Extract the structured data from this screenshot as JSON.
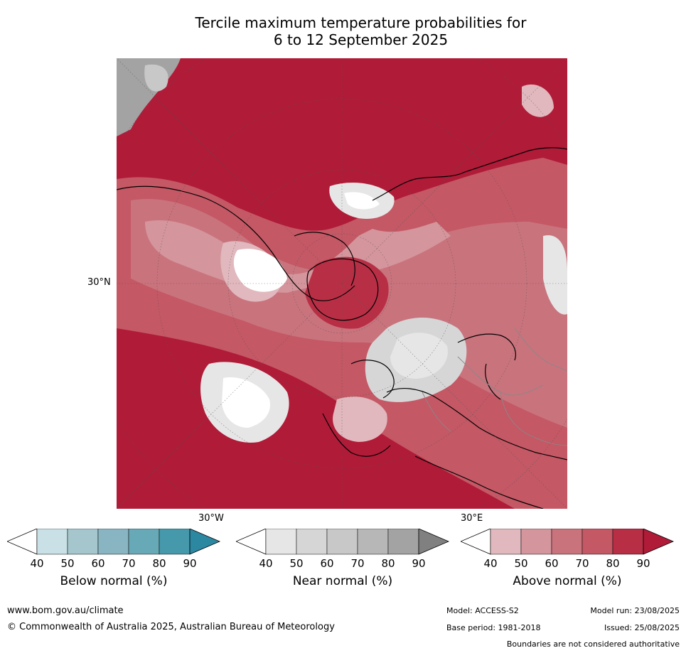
{
  "title_line1": "Tercile maximum temperature probabilities for",
  "title_line2": "6 to 12 September 2025",
  "map": {
    "projection": "north-polar-stereographic",
    "lat_label": "30°N",
    "lon_labels": [
      "30°W",
      "30°E"
    ],
    "dominant_category": "Above normal",
    "colors": {
      "above": [
        "#e0b8bd",
        "#d4959c",
        "#c9737d",
        "#c45865",
        "#b82f45",
        "#b01b38"
      ],
      "below": [
        "#c8e0e6",
        "#a4c6cc",
        "#88b5c1",
        "#67a9b6",
        "#4699ab",
        "#2c87a1"
      ],
      "near": [
        "#e6e6e6",
        "#d6d6d6",
        "#c8c8c8",
        "#b7b7b7",
        "#a3a3a3",
        "#808080"
      ]
    }
  },
  "colorbars": [
    {
      "label": "Below normal (%)",
      "ticks": [
        "40",
        "50",
        "60",
        "70",
        "80",
        "90"
      ],
      "colors": [
        "#ffffff",
        "#c8e0e6",
        "#a4c6cc",
        "#88b5c1",
        "#67a9b6",
        "#4699ab",
        "#2c87a1"
      ]
    },
    {
      "label": "Near normal (%)",
      "ticks": [
        "40",
        "50",
        "60",
        "70",
        "80",
        "90"
      ],
      "colors": [
        "#ffffff",
        "#e6e6e6",
        "#d6d6d6",
        "#c8c8c8",
        "#b7b7b7",
        "#a3a3a3",
        "#808080"
      ]
    },
    {
      "label": "Above normal (%)",
      "ticks": [
        "40",
        "50",
        "60",
        "70",
        "80",
        "90"
      ],
      "colors": [
        "#ffffff",
        "#e0b8bd",
        "#d4959c",
        "#c9737d",
        "#c45865",
        "#b82f45",
        "#b01b38"
      ]
    }
  ],
  "footer": {
    "url": "www.bom.gov.au/climate",
    "copyright": "© Commonwealth of Australia 2025, Australian Bureau of Meteorology",
    "model": "Model: ACCESS-S2",
    "base_period": "Base period: 1981-2018",
    "model_run": "Model run: 23/08/2025",
    "issued": "Issued: 25/08/2025",
    "disclaimer": "Boundaries are not considered authoritative"
  }
}
